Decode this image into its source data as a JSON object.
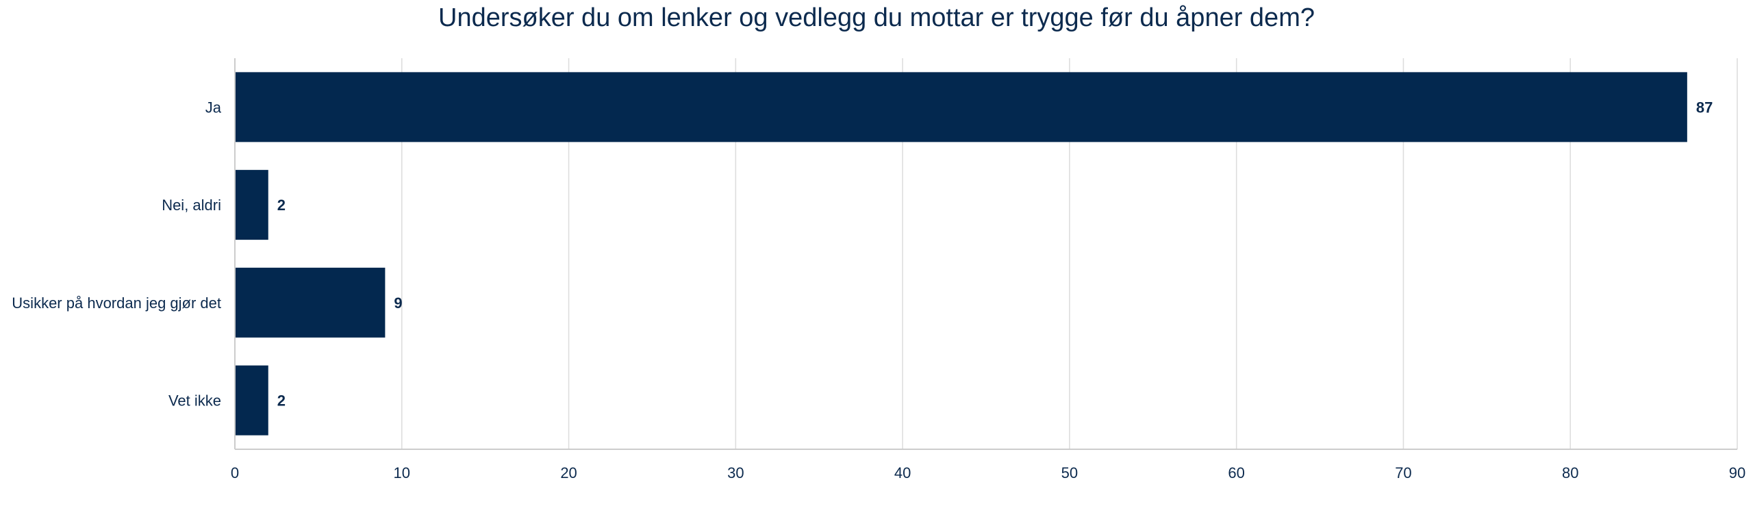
{
  "chart_data": {
    "type": "bar",
    "orientation": "horizontal",
    "title": "Undersøker du om lenker og vedlegg du mottar er trygge før du åpner dem?",
    "categories": [
      "Ja",
      "Nei, aldri",
      "Usikker på hvordan jeg gjør det",
      "Vet ikke"
    ],
    "values": [
      87,
      2,
      9,
      2
    ],
    "xlabel": "",
    "ylabel": "",
    "xlim": [
      0,
      90
    ],
    "xticks": [
      0,
      10,
      20,
      30,
      40,
      50,
      60,
      70,
      80,
      90
    ],
    "grid": true,
    "legend": "none",
    "bar_color": "#03284f",
    "text_color": "#0c2a4e"
  }
}
